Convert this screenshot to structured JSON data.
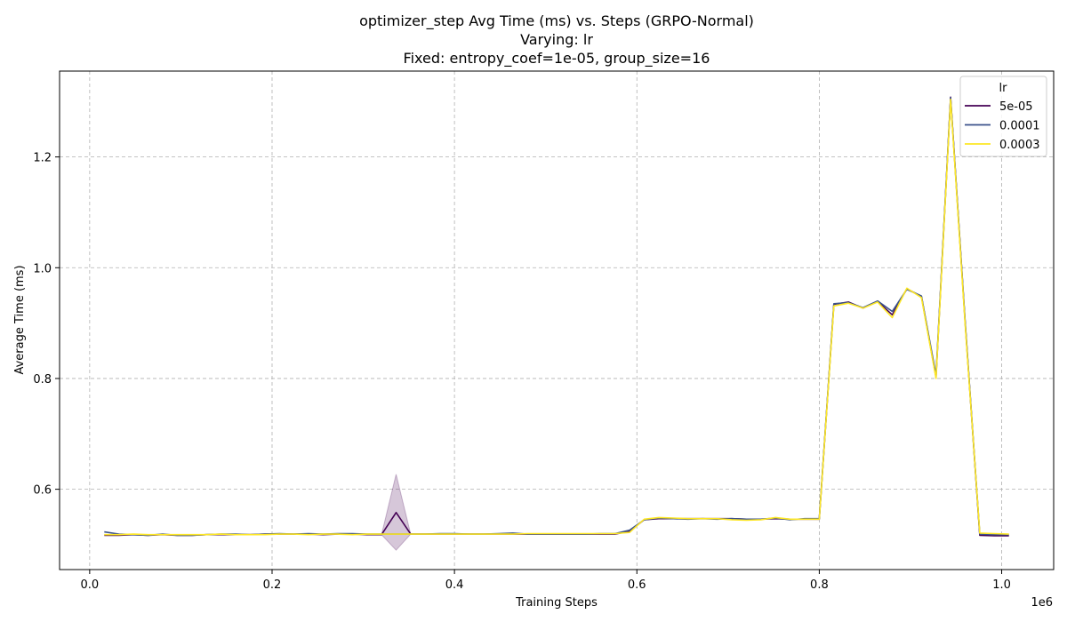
{
  "chart_data": {
    "type": "line",
    "title_lines": [
      "optimizer_step Avg Time (ms) vs. Steps (GRPO-Normal)",
      "Varying: lr",
      "Fixed: entropy_coef=1e-05, group_size=16"
    ],
    "xlabel": "Training Steps",
    "ylabel": "Average Time (ms)",
    "x_offset_label": "1e6",
    "xlim": [
      -33000,
      1057000
    ],
    "ylim": [
      0.455,
      1.355
    ],
    "x_ticks": [
      0,
      200000,
      400000,
      600000,
      800000,
      1000000
    ],
    "x_tick_labels": [
      "0.0",
      "0.2",
      "0.4",
      "0.6",
      "0.8",
      "1.0"
    ],
    "y_ticks": [
      0.6,
      0.8,
      1.0,
      1.2
    ],
    "y_tick_labels": [
      "0.6",
      "0.8",
      "1.0",
      "1.2"
    ],
    "grid": true,
    "legend": {
      "title": "lr",
      "position": "top-right"
    },
    "x": [
      16000,
      32000,
      48000,
      64000,
      80000,
      96000,
      112000,
      128000,
      144000,
      160000,
      176000,
      192000,
      208000,
      224000,
      240000,
      256000,
      272000,
      288000,
      304000,
      320000,
      336000,
      352000,
      368000,
      384000,
      400000,
      416000,
      432000,
      448000,
      464000,
      480000,
      496000,
      512000,
      528000,
      544000,
      560000,
      576000,
      592000,
      608000,
      624000,
      640000,
      656000,
      672000,
      688000,
      704000,
      720000,
      736000,
      752000,
      768000,
      784000,
      800000,
      816000,
      832000,
      848000,
      864000,
      880000,
      896000,
      912000,
      928000,
      944000,
      960000,
      976000,
      992000,
      1008000
    ],
    "series": [
      {
        "name": "5e-05",
        "color": "#440154",
        "values": [
          0.517,
          0.517,
          0.518,
          0.517,
          0.518,
          0.517,
          0.517,
          0.518,
          0.518,
          0.518,
          0.518,
          0.519,
          0.519,
          0.519,
          0.519,
          0.518,
          0.519,
          0.519,
          0.518,
          0.518,
          0.558,
          0.519,
          0.519,
          0.519,
          0.519,
          0.519,
          0.519,
          0.519,
          0.519,
          0.519,
          0.519,
          0.519,
          0.519,
          0.519,
          0.519,
          0.519,
          0.524,
          0.545,
          0.547,
          0.547,
          0.547,
          0.547,
          0.547,
          0.547,
          0.546,
          0.546,
          0.547,
          0.546,
          0.546,
          0.546,
          0.934,
          0.938,
          0.927,
          0.939,
          0.915,
          0.962,
          0.948,
          0.802,
          1.308,
          0.9,
          0.517,
          0.516,
          0.516
        ],
        "band": {
          "index": 20,
          "low": 0.49,
          "high": 0.627
        }
      },
      {
        "name": "0.0001",
        "color": "#3b528b",
        "values": [
          0.523,
          0.519,
          0.518,
          0.517,
          0.519,
          0.517,
          0.517,
          0.518,
          0.519,
          0.519,
          0.518,
          0.519,
          0.52,
          0.519,
          0.52,
          0.519,
          0.52,
          0.52,
          0.519,
          0.519,
          0.519,
          0.519,
          0.519,
          0.52,
          0.52,
          0.519,
          0.519,
          0.52,
          0.521,
          0.519,
          0.519,
          0.519,
          0.519,
          0.519,
          0.52,
          0.52,
          0.526,
          0.545,
          0.548,
          0.547,
          0.546,
          0.547,
          0.546,
          0.547,
          0.546,
          0.546,
          0.548,
          0.545,
          0.547,
          0.547,
          0.935,
          0.937,
          0.928,
          0.94,
          0.921,
          0.961,
          0.949,
          0.806,
          1.307,
          0.902,
          0.519,
          0.518,
          0.518
        ]
      },
      {
        "name": "0.0003",
        "color": "#fde725",
        "values": [
          0.518,
          0.518,
          0.519,
          0.518,
          0.518,
          0.518,
          0.518,
          0.518,
          0.519,
          0.518,
          0.518,
          0.518,
          0.519,
          0.519,
          0.518,
          0.519,
          0.519,
          0.518,
          0.519,
          0.519,
          0.519,
          0.519,
          0.519,
          0.519,
          0.519,
          0.519,
          0.519,
          0.519,
          0.519,
          0.52,
          0.52,
          0.52,
          0.52,
          0.52,
          0.52,
          0.52,
          0.522,
          0.546,
          0.549,
          0.548,
          0.547,
          0.547,
          0.547,
          0.545,
          0.544,
          0.545,
          0.549,
          0.546,
          0.546,
          0.546,
          0.931,
          0.936,
          0.927,
          0.938,
          0.91,
          0.963,
          0.946,
          0.8,
          1.304,
          0.896,
          0.521,
          0.52,
          0.519
        ]
      }
    ]
  }
}
